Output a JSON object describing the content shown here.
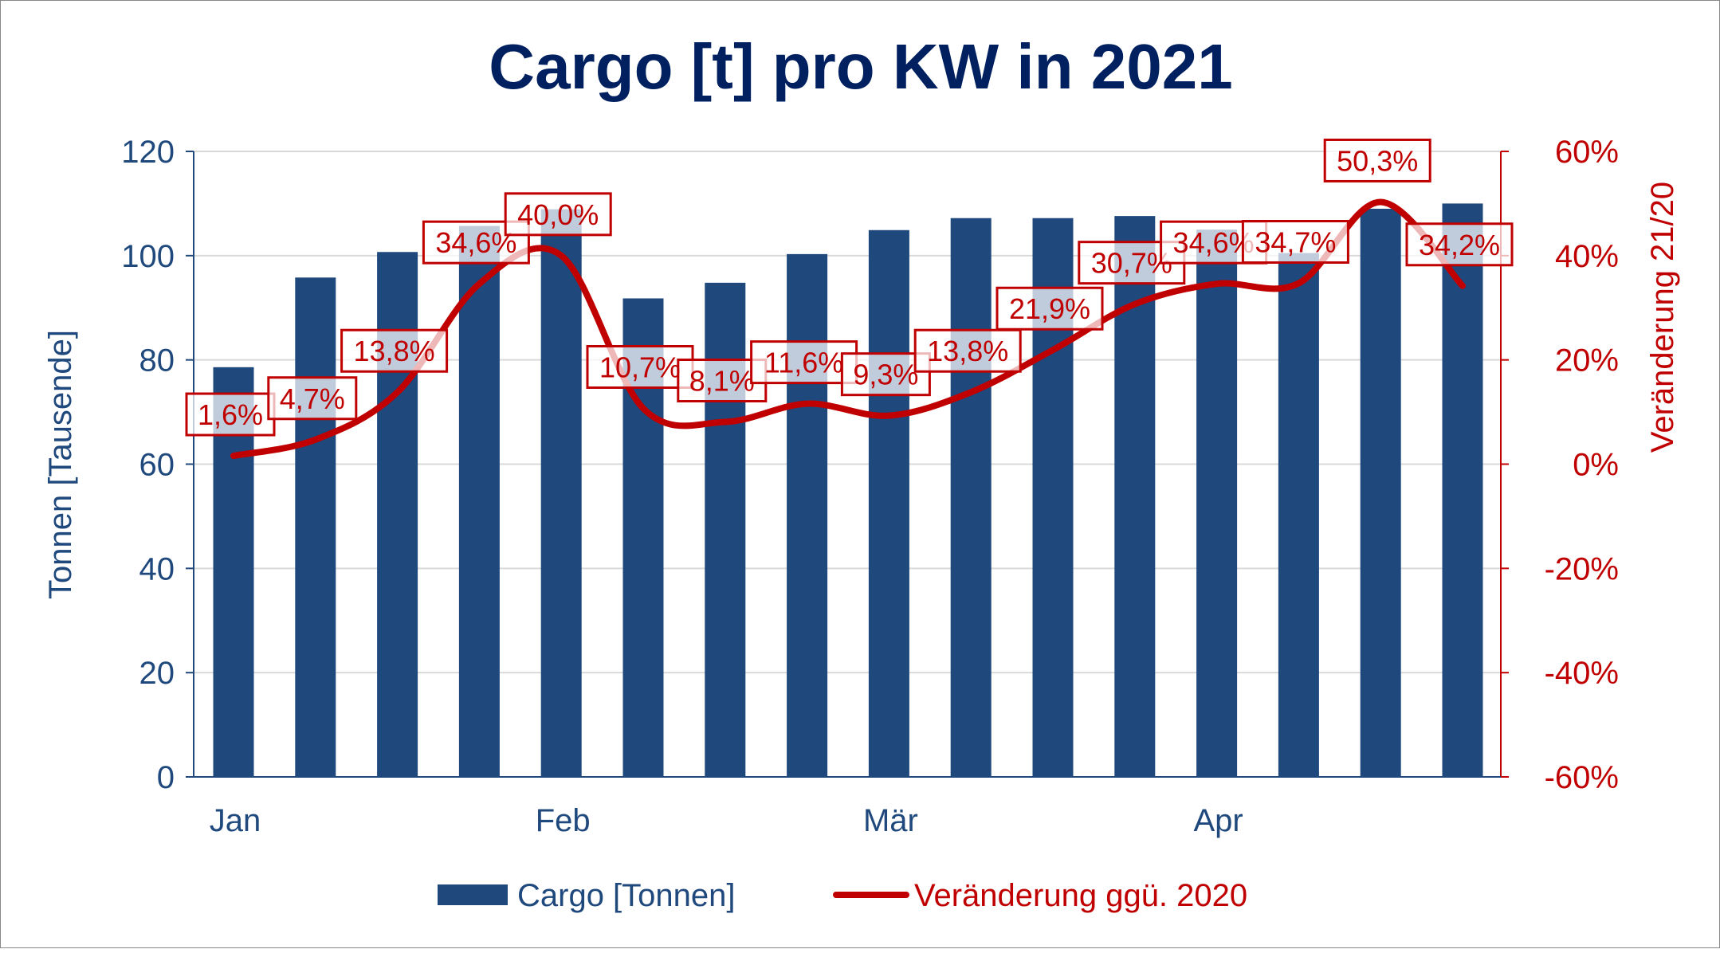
{
  "chart_data": {
    "type": "bar+line",
    "title": "Cargo [t] pro KW in 2021",
    "ylabel": "Tonnen [Tausende]",
    "y2label": "Veränderung 21/20",
    "ylim": [
      0,
      120
    ],
    "yticks": [
      "0",
      "20",
      "40",
      "60",
      "80",
      "100",
      "120"
    ],
    "y2lim": [
      -60,
      60
    ],
    "y2ticks": [
      "-60%",
      "-40%",
      "-20%",
      "0%",
      "20%",
      "40%",
      "60%"
    ],
    "x_month_labels": [
      {
        "label": "Jan",
        "index": 0
      },
      {
        "label": "Feb",
        "index": 4
      },
      {
        "label": "Mär",
        "index": 8
      },
      {
        "label": "Apr",
        "index": 12
      }
    ],
    "grid": true,
    "legend_position": "bottom",
    "series": [
      {
        "name": "Cargo [Tonnen]",
        "type": "bar",
        "axis": "left",
        "color": "#1F497D",
        "values": [
          78.6,
          95.8,
          100.7,
          105.7,
          108.9,
          91.8,
          94.8,
          100.3,
          104.9,
          107.2,
          107.2,
          107.6,
          105.0,
          100.5,
          109.0,
          110.0
        ]
      },
      {
        "name": "Veränderung ggü. 2020",
        "type": "line",
        "axis": "right",
        "color": "#C00000",
        "values": [
          1.6,
          4.7,
          13.8,
          34.6,
          40.0,
          10.7,
          8.1,
          11.6,
          9.3,
          13.8,
          21.9,
          30.7,
          34.6,
          34.7,
          50.3,
          34.2
        ],
        "data_labels": [
          "1,6%",
          "4,7%",
          "13,8%",
          "34,6%",
          "40,0%",
          "10,7%",
          "8,1%",
          "11,6%",
          "9,3%",
          "13,8%",
          "21,9%",
          "30,7%",
          "34,6%",
          "34,7%",
          "50,3%",
          "34,2%"
        ]
      }
    ]
  }
}
